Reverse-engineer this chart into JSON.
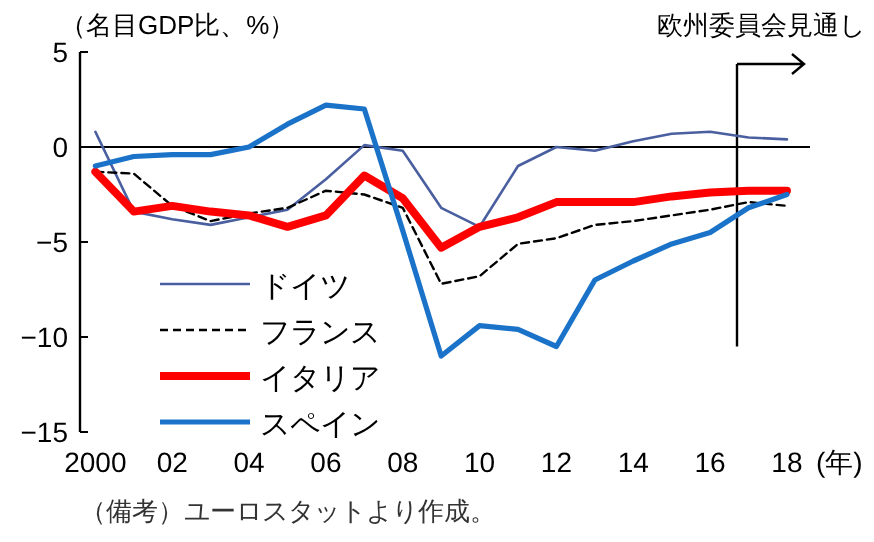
{
  "chart_data": {
    "type": "line",
    "ylabel": "（名目GDP比、%）",
    "x": [
      2000,
      2001,
      2002,
      2003,
      2004,
      2005,
      2006,
      2007,
      2008,
      2009,
      2010,
      2011,
      2012,
      2013,
      2014,
      2015,
      2016,
      2017,
      2018
    ],
    "series": [
      {
        "name": "ドイツ",
        "color": "#4a5fa0",
        "line_style": "solid",
        "values": [
          0.8,
          -3.4,
          -3.8,
          -4.1,
          -3.7,
          -3.3,
          -1.7,
          0.1,
          -0.2,
          -3.2,
          -4.2,
          -1.0,
          0.0,
          -0.2,
          0.3,
          0.7,
          0.8,
          0.5,
          0.4
        ]
      },
      {
        "name": "フランス",
        "color": "#000000",
        "line_style": "dashed",
        "values": [
          -1.3,
          -1.4,
          -3.1,
          -3.9,
          -3.5,
          -3.2,
          -2.3,
          -2.5,
          -3.2,
          -7.2,
          -6.8,
          -5.1,
          -4.8,
          -4.1,
          -3.9,
          -3.6,
          -3.3,
          -2.9,
          -3.1
        ]
      },
      {
        "name": "イタリア",
        "color": "#ff0000",
        "line_style": "solid",
        "values": [
          -1.3,
          -3.4,
          -3.1,
          -3.4,
          -3.6,
          -4.2,
          -3.6,
          -1.5,
          -2.7,
          -5.3,
          -4.2,
          -3.7,
          -2.9,
          -2.9,
          -2.9,
          -2.6,
          -2.4,
          -2.3,
          -2.3
        ]
      },
      {
        "name": "スペイン",
        "color": "#1a73c8",
        "line_style": "solid",
        "values": [
          -1.0,
          -0.5,
          -0.4,
          -0.4,
          0.0,
          1.2,
          2.2,
          2.0,
          -4.4,
          -11.0,
          -9.4,
          -9.6,
          -10.5,
          -7.0,
          -6.0,
          -5.1,
          -4.5,
          -3.2,
          -2.5
        ]
      }
    ],
    "xlim": [
      1999.6,
      2018.6
    ],
    "xticks": [
      {
        "value": 2000,
        "label": "2000"
      },
      {
        "value": 2002,
        "label": "02"
      },
      {
        "value": 2004,
        "label": "04"
      },
      {
        "value": 2006,
        "label": "06"
      },
      {
        "value": 2008,
        "label": "08"
      },
      {
        "value": 2010,
        "label": "10"
      },
      {
        "value": 2012,
        "label": "12"
      },
      {
        "value": 2014,
        "label": "14"
      },
      {
        "value": 2016,
        "label": "16"
      },
      {
        "value": 2018,
        "label": "18"
      }
    ],
    "xlabel": "(年)",
    "ylim": [
      -15,
      5
    ],
    "yticks": [
      {
        "value": 5,
        "label": "5"
      },
      {
        "value": 0,
        "label": "0"
      },
      {
        "value": -5,
        "label": "−5"
      },
      {
        "value": -10,
        "label": "−10"
      },
      {
        "value": -15,
        "label": "−15"
      }
    ],
    "ref_lines": [
      {
        "axis": "y",
        "value": 0,
        "color": "#000000"
      },
      {
        "axis": "x",
        "value": 2016.7,
        "label": "欧州委員会見通し",
        "color": "#000000"
      }
    ],
    "legend": "bottom left",
    "grid": false,
    "annotations": [
      "（備考）ユーロスタットより作成。"
    ]
  }
}
